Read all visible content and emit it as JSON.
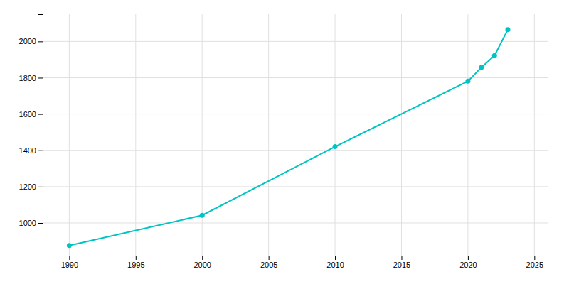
{
  "chart_data": {
    "type": "line",
    "x": [
      1990,
      2000,
      2010,
      2020,
      2021,
      2022,
      2023
    ],
    "values": [
      876,
      1042,
      1420,
      1781,
      1856,
      1922,
      2065
    ],
    "color": "#00C4C4",
    "marker": "circle",
    "xlim": [
      1988,
      2026
    ],
    "ylim": [
      820,
      2150
    ],
    "xticks": [
      1990,
      1995,
      2000,
      2005,
      2010,
      2015,
      2020,
      2025
    ],
    "yticks": [
      1000,
      1200,
      1400,
      1600,
      1800,
      2000
    ],
    "grid": true
  }
}
